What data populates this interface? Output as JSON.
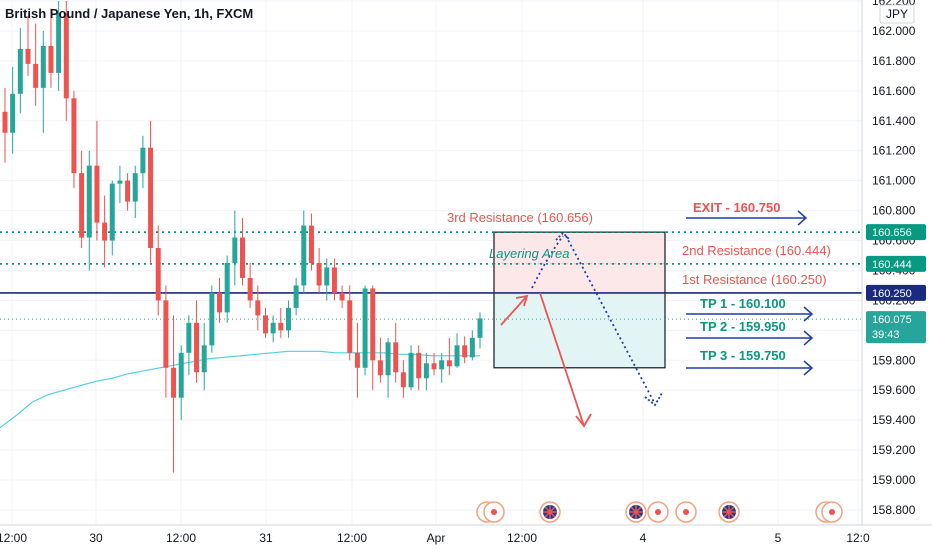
{
  "header": {
    "title": "British Pound / Japanese Yen, 1h, FXCM"
  },
  "price_axis": {
    "currency": "JPY"
  },
  "chart_data": {
    "type": "candlestick",
    "title": "British Pound / Japanese Yen, 1h, FXCM",
    "ylim": [
      158.7,
      162.25
    ],
    "y_ticks": [
      "162.200",
      "162.000",
      "161.800",
      "161.600",
      "161.400",
      "161.200",
      "161.000",
      "160.800",
      "160.600",
      "160.400",
      "160.200",
      "160.000",
      "159.800",
      "159.600",
      "159.400",
      "159.200",
      "159.000",
      "158.800"
    ],
    "x_ticks": [
      "12:00",
      "30",
      "12:00",
      "31",
      "12:00",
      "Apr",
      "12:00",
      "4",
      "5",
      "12:0"
    ],
    "colors": {
      "up": "#26a69a",
      "down": "#ef5350",
      "ma": "#4dd0e1",
      "accent": "#1e3fae"
    },
    "candles": [
      {
        "o": 161.46,
        "h": 161.62,
        "l": 161.12,
        "c": 161.32
      },
      {
        "o": 161.32,
        "h": 161.76,
        "l": 161.18,
        "c": 161.58
      },
      {
        "o": 161.58,
        "h": 162.02,
        "l": 161.45,
        "c": 161.88
      },
      {
        "o": 161.88,
        "h": 162.1,
        "l": 161.7,
        "c": 161.78
      },
      {
        "o": 161.78,
        "h": 162.05,
        "l": 161.5,
        "c": 161.62
      },
      {
        "o": 161.62,
        "h": 162.0,
        "l": 161.32,
        "c": 161.9
      },
      {
        "o": 161.9,
        "h": 162.15,
        "l": 161.62,
        "c": 161.72
      },
      {
        "o": 161.72,
        "h": 162.2,
        "l": 161.6,
        "c": 162.12
      },
      {
        "o": 162.12,
        "h": 162.2,
        "l": 161.4,
        "c": 161.55
      },
      {
        "o": 161.55,
        "h": 161.6,
        "l": 160.95,
        "c": 161.05
      },
      {
        "o": 161.05,
        "h": 161.2,
        "l": 160.55,
        "c": 160.62
      },
      {
        "o": 160.62,
        "h": 161.2,
        "l": 160.4,
        "c": 161.1
      },
      {
        "o": 161.1,
        "h": 161.4,
        "l": 160.6,
        "c": 160.72
      },
      {
        "o": 160.72,
        "h": 160.9,
        "l": 160.42,
        "c": 160.6
      },
      {
        "o": 160.6,
        "h": 161.0,
        "l": 160.5,
        "c": 160.98
      },
      {
        "o": 160.98,
        "h": 161.1,
        "l": 160.85,
        "c": 161.0
      },
      {
        "o": 161.0,
        "h": 161.05,
        "l": 160.8,
        "c": 160.86
      },
      {
        "o": 160.86,
        "h": 161.1,
        "l": 160.75,
        "c": 161.05
      },
      {
        "o": 161.05,
        "h": 161.3,
        "l": 160.95,
        "c": 161.22
      },
      {
        "o": 161.22,
        "h": 161.4,
        "l": 160.45,
        "c": 160.55
      },
      {
        "o": 160.55,
        "h": 160.7,
        "l": 160.1,
        "c": 160.2
      },
      {
        "o": 160.2,
        "h": 160.3,
        "l": 159.55,
        "c": 159.75
      },
      {
        "o": 159.75,
        "h": 160.1,
        "l": 159.05,
        "c": 159.55
      },
      {
        "o": 159.55,
        "h": 159.9,
        "l": 159.4,
        "c": 159.85
      },
      {
        "o": 159.85,
        "h": 160.1,
        "l": 159.7,
        "c": 160.05
      },
      {
        "o": 160.05,
        "h": 160.2,
        "l": 159.65,
        "c": 159.72
      },
      {
        "o": 159.72,
        "h": 160.05,
        "l": 159.6,
        "c": 159.9
      },
      {
        "o": 159.9,
        "h": 160.3,
        "l": 159.85,
        "c": 160.25
      },
      {
        "o": 160.25,
        "h": 160.35,
        "l": 160.05,
        "c": 160.12
      },
      {
        "o": 160.12,
        "h": 160.5,
        "l": 160.05,
        "c": 160.45
      },
      {
        "o": 160.45,
        "h": 160.8,
        "l": 160.3,
        "c": 160.62
      },
      {
        "o": 160.62,
        "h": 160.75,
        "l": 160.3,
        "c": 160.35
      },
      {
        "o": 160.35,
        "h": 160.45,
        "l": 160.15,
        "c": 160.2
      },
      {
        "o": 160.2,
        "h": 160.3,
        "l": 160.0,
        "c": 160.1
      },
      {
        "o": 160.1,
        "h": 160.15,
        "l": 159.95,
        "c": 159.98
      },
      {
        "o": 159.98,
        "h": 160.1,
        "l": 159.92,
        "c": 160.05
      },
      {
        "o": 160.05,
        "h": 160.15,
        "l": 159.95,
        "c": 160.0
      },
      {
        "o": 160.0,
        "h": 160.2,
        "l": 159.95,
        "c": 160.15
      },
      {
        "o": 160.15,
        "h": 160.35,
        "l": 160.1,
        "c": 160.3
      },
      {
        "o": 160.3,
        "h": 160.8,
        "l": 160.25,
        "c": 160.7
      },
      {
        "o": 160.7,
        "h": 160.78,
        "l": 160.4,
        "c": 160.45
      },
      {
        "o": 160.45,
        "h": 160.55,
        "l": 160.25,
        "c": 160.3
      },
      {
        "o": 160.3,
        "h": 160.48,
        "l": 160.2,
        "c": 160.42
      },
      {
        "o": 160.42,
        "h": 160.48,
        "l": 160.2,
        "c": 160.25
      },
      {
        "o": 160.25,
        "h": 160.3,
        "l": 160.15,
        "c": 160.2
      },
      {
        "o": 160.2,
        "h": 160.3,
        "l": 159.8,
        "c": 159.85
      },
      {
        "o": 159.85,
        "h": 160.05,
        "l": 159.55,
        "c": 159.75
      },
      {
        "o": 159.75,
        "h": 160.3,
        "l": 159.7,
        "c": 160.28
      },
      {
        "o": 160.28,
        "h": 160.3,
        "l": 159.6,
        "c": 159.8
      },
      {
        "o": 159.8,
        "h": 159.95,
        "l": 159.65,
        "c": 159.7
      },
      {
        "o": 159.7,
        "h": 159.95,
        "l": 159.55,
        "c": 159.92
      },
      {
        "o": 159.92,
        "h": 160.05,
        "l": 159.65,
        "c": 159.72
      },
      {
        "o": 159.72,
        "h": 159.8,
        "l": 159.55,
        "c": 159.62
      },
      {
        "o": 159.62,
        "h": 159.9,
        "l": 159.6,
        "c": 159.85
      },
      {
        "o": 159.85,
        "h": 159.9,
        "l": 159.6,
        "c": 159.68
      },
      {
        "o": 159.68,
        "h": 159.85,
        "l": 159.6,
        "c": 159.78
      },
      {
        "o": 159.78,
        "h": 159.85,
        "l": 159.7,
        "c": 159.74
      },
      {
        "o": 159.74,
        "h": 159.85,
        "l": 159.65,
        "c": 159.8
      },
      {
        "o": 159.8,
        "h": 159.95,
        "l": 159.7,
        "c": 159.76
      },
      {
        "o": 159.76,
        "h": 159.98,
        "l": 159.75,
        "c": 159.9
      },
      {
        "o": 159.9,
        "h": 159.96,
        "l": 159.78,
        "c": 159.82
      },
      {
        "o": 159.82,
        "h": 160.0,
        "l": 159.8,
        "c": 159.95
      },
      {
        "o": 159.95,
        "h": 160.12,
        "l": 159.88,
        "c": 160.08
      }
    ],
    "moving_average": [
      159.35,
      159.43,
      159.52,
      159.57,
      159.6,
      159.63,
      159.66,
      159.68,
      159.71,
      159.73,
      159.75,
      159.77,
      159.79,
      159.81,
      159.82,
      159.83,
      159.84,
      159.85,
      159.86,
      159.86,
      159.86,
      159.85,
      159.85,
      159.85,
      159.85,
      159.84,
      159.84,
      159.83,
      159.83,
      159.83,
      159.83
    ],
    "levels": [
      {
        "price": 160.656,
        "label": "160.656",
        "style": "dotted",
        "color": "#089981"
      },
      {
        "price": 160.444,
        "label": "160.444",
        "style": "dotted",
        "color": "#089981"
      },
      {
        "price": 160.25,
        "label": "160.250",
        "style": "solid",
        "color": "#1a2a80"
      }
    ],
    "current_price": {
      "price": 160.075,
      "label": "160.075",
      "countdown": "39:43"
    },
    "annotations": {
      "res3": "3rd Resistance (160.656)",
      "layering": "Layering Area",
      "exit": "EXIT - 160.750",
      "res2": "2nd Resistance (160.444)",
      "res1": "1st Resistance (160.250)",
      "tp1": "TP 1 - 160.100",
      "tp2": "TP 2 - 159.950",
      "tp3": "TP 3 - 159.750"
    },
    "zones": [
      {
        "from": 160.656,
        "to": 160.25,
        "color": "#fce8e8"
      },
      {
        "from": 160.25,
        "to": 159.75,
        "color": "#e3f4f4"
      }
    ]
  }
}
